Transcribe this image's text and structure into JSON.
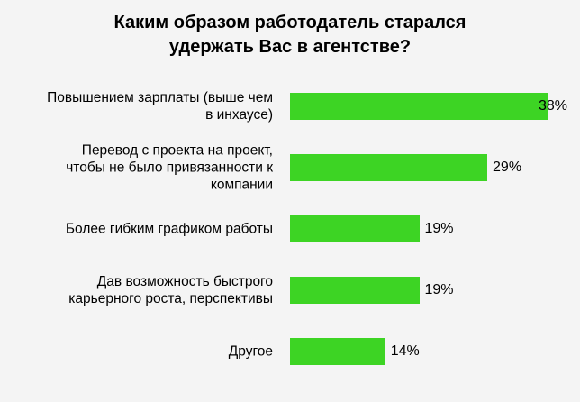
{
  "chart_data": {
    "type": "bar",
    "orientation": "horizontal",
    "title": "Каким образом работодатель старался\nудержать Вас в агентстве?",
    "categories": [
      "Повышением зарплаты (выше чем\nв инхаусе)",
      "Перевод с проекта на проект,\nчтобы не было привязанности к\nкомпании",
      "Более гибким графиком работы",
      "Дав возможность быстрого\nкарьерного роста, перспективы",
      "Другое"
    ],
    "values": [
      38,
      29,
      19,
      19,
      14
    ],
    "value_labels": [
      "38%",
      "29%",
      "19%",
      "19%",
      "14%"
    ],
    "color": "#3dd424"
  }
}
